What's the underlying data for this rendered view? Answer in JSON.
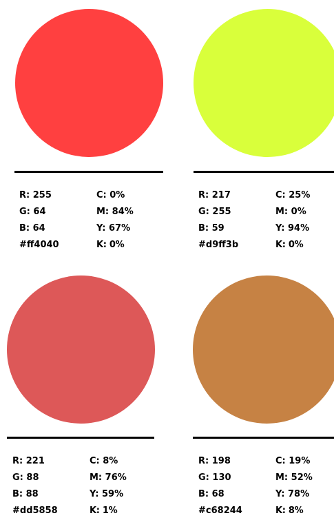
{
  "swatches": [
    {
      "color": "#ff4040",
      "r": "R: 255",
      "g": "G: 64",
      "b": "B: 64",
      "hex": "#ff4040",
      "c": "C: 0%",
      "m": "M: 84%",
      "y": "Y: 67%",
      "k": "K: 0%"
    },
    {
      "color": "#d9ff3b",
      "r": "R: 217",
      "g": "G: 255",
      "b": "B: 59",
      "hex": "#d9ff3b",
      "c": "C: 25%",
      "m": "M: 0%",
      "y": "Y: 94%",
      "k": "K: 0%"
    },
    {
      "color": "#dd5858",
      "r": "R: 221",
      "g": "G: 88",
      "b": "B: 88",
      "hex": "#dd5858",
      "c": "C: 8%",
      "m": "M: 76%",
      "y": "Y: 59%",
      "k": "K: 1%"
    },
    {
      "color": "#c68244",
      "r": "R: 198",
      "g": "G: 130",
      "b": "B: 68",
      "hex": "#c68244",
      "c": "C: 19%",
      "m": "M: 52%",
      "y": "Y: 78%",
      "k": "K: 8%"
    }
  ]
}
